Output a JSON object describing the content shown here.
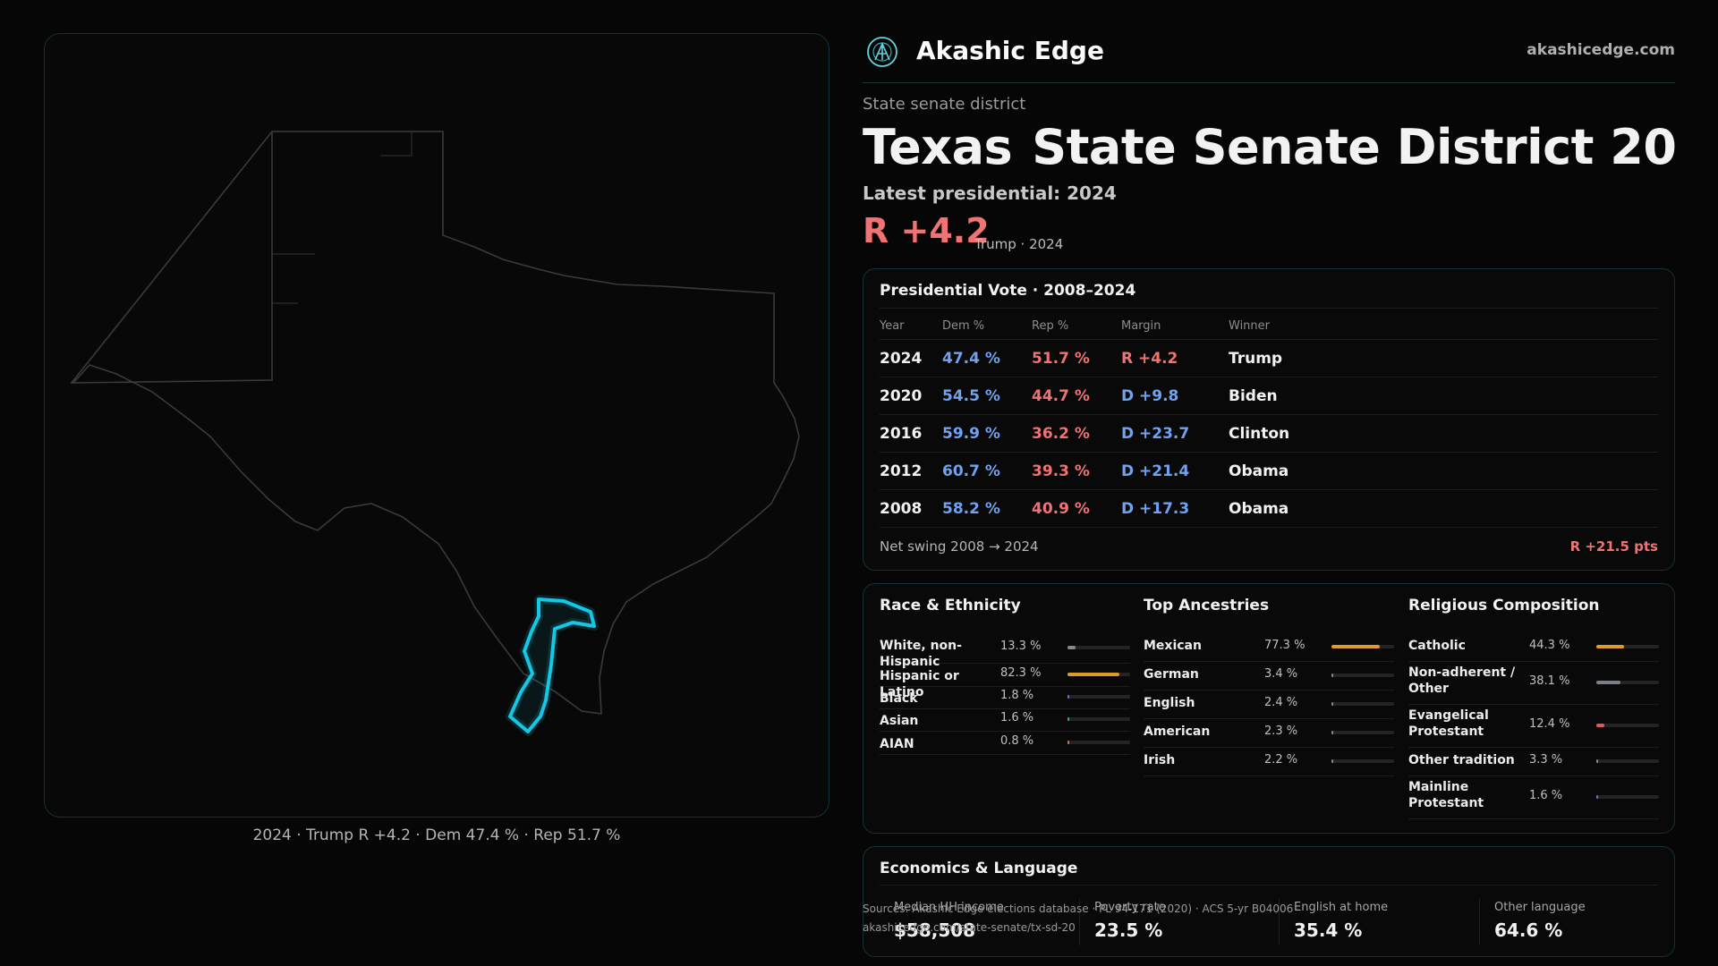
{
  "brand": {
    "name": "Akashic Edge",
    "url": "akashicedge.com"
  },
  "map": {
    "caption": "2024 · Trump R +4.2 · Dem 47.4 % · Rep 51.7 %",
    "highlight_color": "#14c8e6"
  },
  "header": {
    "kicker": "State senate district",
    "title_state": "Texas",
    "title_district": "State Senate District 20",
    "latest_label": "Latest presidential: 2024",
    "margin": "R +4.2",
    "margin_sub": "Trump · 2024"
  },
  "presidential": {
    "title": "Presidential Vote · 2008–2024",
    "headers": [
      "Year",
      "Dem %",
      "Rep %",
      "Margin",
      "Winner"
    ],
    "rows": [
      {
        "year": "2024",
        "dem": "47.4 %",
        "rep": "51.7 %",
        "margin": "R +4.2",
        "winner": "Trump"
      },
      {
        "year": "2020",
        "dem": "54.5 %",
        "rep": "44.7 %",
        "margin": "D +9.8",
        "winner": "Biden"
      },
      {
        "year": "2016",
        "dem": "59.9 %",
        "rep": "36.2 %",
        "margin": "D +23.7",
        "winner": "Clinton"
      },
      {
        "year": "2012",
        "dem": "60.7 %",
        "rep": "39.3 %",
        "margin": "D +21.4",
        "winner": "Obama"
      },
      {
        "year": "2008",
        "dem": "58.2 %",
        "rep": "40.9 %",
        "margin": "D +17.3",
        "winner": "Obama"
      }
    ],
    "swing_label": "Net swing 2008 → 2024",
    "swing_value": "R +21.5 pts"
  },
  "race": {
    "title": "Race & Ethnicity",
    "rows": [
      {
        "label": "White, non-Hispanic",
        "value": "13.3 %",
        "pct": 13.3,
        "color": "#8a8a8a"
      },
      {
        "label": "Hispanic or Latino",
        "value": "82.3 %",
        "pct": 82.3,
        "color": "#e09a2a"
      },
      {
        "label": "Black",
        "value": "1.8 %",
        "pct": 1.8,
        "color": "#6f6fe0"
      },
      {
        "label": "Asian",
        "value": "1.6 %",
        "pct": 1.6,
        "color": "#3aa79a"
      },
      {
        "label": "AIAN",
        "value": "0.8 %",
        "pct": 0.8,
        "color": "#c97a5a"
      }
    ]
  },
  "ancestry": {
    "title": "Top Ancestries",
    "rows": [
      {
        "label": "Mexican",
        "value": "77.3 %",
        "pct": 77.3,
        "color": "#e09a2a"
      },
      {
        "label": "German",
        "value": "3.4 %",
        "pct": 3.4,
        "color": "#8a8a8a"
      },
      {
        "label": "English",
        "value": "2.4 %",
        "pct": 2.4,
        "color": "#8a8a8a"
      },
      {
        "label": "American",
        "value": "2.3 %",
        "pct": 2.3,
        "color": "#8a8a8a"
      },
      {
        "label": "Irish",
        "value": "2.2 %",
        "pct": 2.2,
        "color": "#8a8a8a"
      }
    ]
  },
  "religion": {
    "title": "Religious Composition",
    "rows": [
      {
        "label": "Catholic",
        "value": "44.3 %",
        "pct": 44.3,
        "color": "#e09a2a"
      },
      {
        "label": "Non-adherent / Other",
        "value": "38.1 %",
        "pct": 38.1,
        "color": "#7a7f8a"
      },
      {
        "label": "Evangelical Protestant",
        "value": "12.4 %",
        "pct": 12.4,
        "color": "#e05a5a"
      },
      {
        "label": "Other tradition",
        "value": "3.3 %",
        "pct": 3.3,
        "color": "#8a8a8a"
      },
      {
        "label": "Mainline Protestant",
        "value": "1.6 %",
        "pct": 1.6,
        "color": "#6f6fe0"
      }
    ]
  },
  "economics": {
    "title": "Economics & Language",
    "stats": [
      {
        "label": "Median HH income",
        "value": "$58,508"
      },
      {
        "label": "Poverty rate",
        "value": "23.5 %"
      },
      {
        "label": "English at home",
        "value": "35.4 %"
      },
      {
        "label": "Other language",
        "value": "64.6 %"
      }
    ]
  },
  "source": {
    "line1": "Sources: Akashic Edge elections database · PL 94-171 (2020) · ACS 5-yr B04006",
    "line2": "akashicedge.com/state-senate/tx-sd-20"
  }
}
